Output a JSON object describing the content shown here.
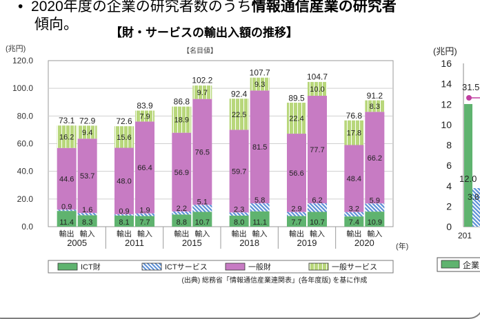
{
  "slide": {
    "bullet_symbol": "•",
    "bullet_text_plain": "2020年度の企業の研究者数のうち",
    "bullet_text_bold": "情報通信産業の研究者",
    "bullet_continuation": "傾向。"
  },
  "chart_data": {
    "type": "bar",
    "title": "【財・サービスの輸出入額の推移】",
    "subtitle": "【名目値】",
    "ylabel": "(兆円)",
    "xlabel": "(年)",
    "ylim": [
      0,
      120
    ],
    "yticks": [
      "0.0",
      "20.0",
      "40.0",
      "60.0",
      "80.0",
      "100.0",
      "120.0"
    ],
    "grid": true,
    "legend_position": "bottom",
    "years": [
      "2005",
      "2011",
      "2015",
      "2018",
      "2019",
      "2020"
    ],
    "bar_types": [
      "輸出",
      "輸入"
    ],
    "series": [
      {
        "name": "ICT財",
        "color": "#5fb36f",
        "pattern": "solid",
        "values": [
          11.4,
          8.3,
          8.1,
          7.7,
          8.8,
          10.7,
          8.0,
          11.1,
          7.7,
          10.7,
          7.4,
          10.9
        ],
        "labels": [
          "11.4",
          "8.3",
          "8.1",
          "7.7",
          "8.8",
          "10.7",
          "8.0",
          "11.1",
          "7.7",
          "10.7",
          "7.4",
          "10.9"
        ]
      },
      {
        "name": "ICTサービス",
        "color": "#6f9fd8",
        "pattern": "hatch",
        "values": [
          0.9,
          1.6,
          0.9,
          1.9,
          2.2,
          5.1,
          2.3,
          5.8,
          2.9,
          6.2,
          3.2,
          5.9
        ],
        "labels": [
          "0.9",
          "1.6",
          "0.9",
          "1.9",
          "2.2",
          "5.1",
          "2.3",
          "5.8",
          "2.9",
          "6.2",
          "3.2",
          "5.9"
        ]
      },
      {
        "name": "一般財",
        "color": "#c77bc3",
        "pattern": "solid",
        "values": [
          44.6,
          53.7,
          48.0,
          66.4,
          56.9,
          76.5,
          59.7,
          81.5,
          56.6,
          77.7,
          48.4,
          66.2
        ],
        "labels": [
          "44.6",
          "53.7",
          "48.0",
          "66.4",
          "56.9",
          "76.5",
          "59.7",
          "81.5",
          "56.6",
          "77.7",
          "48.4",
          "66.2"
        ]
      },
      {
        "name": "一般サービス",
        "color": "#b8d77b",
        "pattern": "grid",
        "values": [
          16.2,
          9.4,
          15.6,
          7.9,
          18.9,
          9.7,
          22.5,
          9.3,
          22.4,
          10.0,
          17.8,
          8.3
        ],
        "labels": [
          "16.2",
          "9.4",
          "15.6",
          "7.9",
          "18.9",
          "9.7",
          "22.5",
          "9.3",
          "22.4",
          "10.0",
          "17.8",
          "8.3"
        ]
      }
    ],
    "totals": [
      73.1,
      72.9,
      72.6,
      83.9,
      86.8,
      102.2,
      92.4,
      107.7,
      89.5,
      104.7,
      76.8,
      91.2
    ],
    "total_labels": [
      "73.1",
      "72.9",
      "72.6",
      "83.9",
      "86.8",
      "102.2",
      "92.4",
      "107.7",
      "89.5",
      "104.7",
      "76.8",
      "91.2"
    ],
    "source": "(出典) 総務省「情報通信産業連関表」(各年度版) を基に作成"
  },
  "chart2_partial": {
    "ylabel": "(兆円)",
    "yticks": [
      "0",
      "2",
      "4",
      "6",
      "8",
      "10",
      "12",
      "14",
      "16"
    ],
    "bar_labels": [
      "12.0",
      "3.8"
    ],
    "line_label": "31.5",
    "x_label_partial": "201",
    "legend_label_partial": "企業",
    "bar_color": "#5fb36f",
    "line_color": "#c77bc3"
  }
}
